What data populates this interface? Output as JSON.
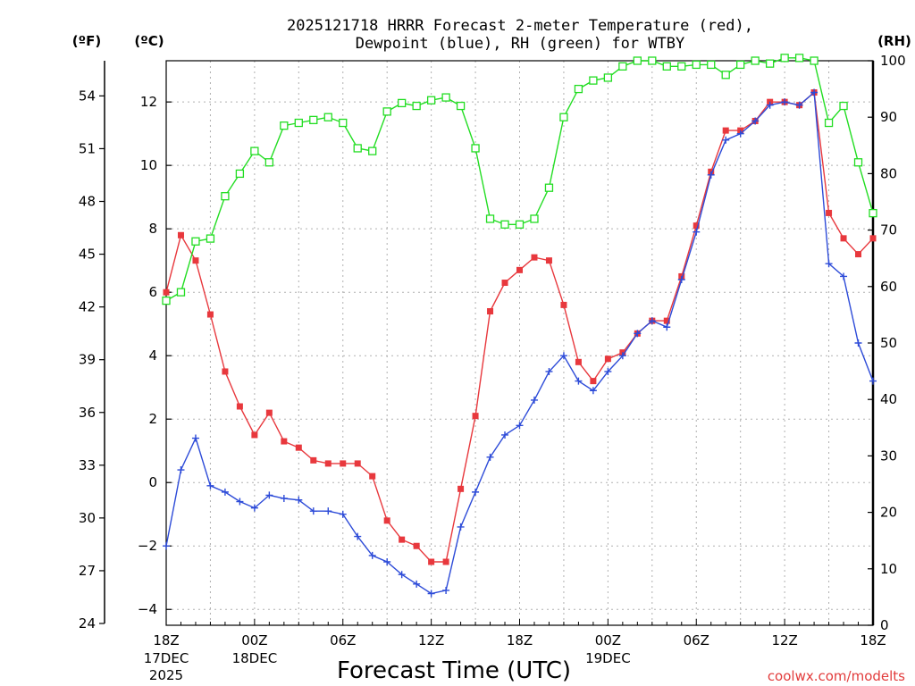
{
  "chart_data": {
    "type": "line",
    "title_line1": "2025121718 HRRR Forecast 2-meter Temperature (red),",
    "title_line2": "Dewpoint (blue), RH (green) for WTBY",
    "xlabel": "Forecast Time (UTC)",
    "credit": "coolwx.com/modelts",
    "unit_f": "(ºF)",
    "unit_c": "(ºC)",
    "unit_rh": "(RH)",
    "x_range": [
      0,
      48
    ],
    "c_range": [
      -4.5,
      13.3
    ],
    "rh_range": [
      0,
      100
    ],
    "f_range": [
      24,
      56
    ],
    "x_ticks": [
      {
        "x": 0,
        "label": "18Z",
        "sub1": "17DEC",
        "sub2": "2025"
      },
      {
        "x": 6,
        "label": "00Z",
        "sub1": "18DEC",
        "sub2": ""
      },
      {
        "x": 12,
        "label": "06Z",
        "sub1": "",
        "sub2": ""
      },
      {
        "x": 18,
        "label": "12Z",
        "sub1": "",
        "sub2": ""
      },
      {
        "x": 24,
        "label": "18Z",
        "sub1": "",
        "sub2": ""
      },
      {
        "x": 30,
        "label": "00Z",
        "sub1": "19DEC",
        "sub2": ""
      },
      {
        "x": 36,
        "label": "06Z",
        "sub1": "",
        "sub2": ""
      },
      {
        "x": 42,
        "label": "12Z",
        "sub1": "",
        "sub2": ""
      },
      {
        "x": 48,
        "label": "18Z",
        "sub1": "",
        "sub2": ""
      }
    ],
    "c_ticks": [
      -4,
      -2,
      0,
      2,
      4,
      6,
      8,
      10,
      12
    ],
    "f_ticks": [
      24,
      27,
      30,
      33,
      36,
      39,
      42,
      45,
      48,
      51,
      54
    ],
    "rh_ticks": [
      0,
      10,
      20,
      30,
      40,
      50,
      60,
      70,
      80,
      90,
      100
    ],
    "series": [
      {
        "name": "Temperature",
        "axis": "c",
        "color": "#e8383d",
        "marker": "filled-square",
        "values": [
          6.0,
          7.8,
          7.0,
          5.3,
          3.5,
          2.4,
          1.5,
          2.2,
          1.3,
          1.1,
          0.7,
          0.6,
          0.6,
          0.6,
          0.2,
          -1.2,
          -1.8,
          -2.0,
          -2.5,
          -2.5,
          -0.2,
          2.1,
          5.4,
          6.3,
          6.7,
          7.1,
          7.0,
          5.6,
          3.8,
          3.2,
          3.9,
          4.1,
          4.7,
          5.1,
          5.1,
          6.5,
          8.1,
          9.8,
          11.1,
          11.1,
          11.4,
          12.0,
          12.0,
          11.9,
          12.3,
          8.5,
          7.7,
          7.2,
          7.7
        ]
      },
      {
        "name": "Dewpoint",
        "axis": "c",
        "color": "#2d4bd8",
        "marker": "plus",
        "values": [
          -2.0,
          0.4,
          1.4,
          -0.1,
          -0.3,
          -0.6,
          -0.8,
          -0.4,
          -0.5,
          -0.55,
          -0.9,
          -0.9,
          -1.0,
          -1.7,
          -2.3,
          -2.5,
          -2.9,
          -3.2,
          -3.5,
          -3.4,
          -1.4,
          -0.3,
          0.8,
          1.5,
          1.8,
          2.6,
          3.5,
          4.0,
          3.2,
          2.9,
          3.5,
          4.0,
          4.7,
          5.1,
          4.9,
          6.4,
          7.9,
          9.7,
          10.8,
          11.0,
          11.4,
          11.9,
          12.0,
          11.9,
          12.3,
          6.9,
          6.5,
          4.4,
          3.2
        ]
      },
      {
        "name": "RH",
        "axis": "rh",
        "color": "#22dd22",
        "marker": "open-square",
        "values": [
          57.5,
          59,
          68,
          68.5,
          76,
          80,
          84,
          82,
          88.5,
          89,
          89.5,
          90,
          89,
          84.5,
          84,
          91,
          92.5,
          92,
          93,
          93.5,
          92,
          84.5,
          72,
          71,
          71,
          72,
          77.5,
          90,
          95,
          96.5,
          97,
          99,
          100,
          100,
          99,
          99,
          99.3,
          99.3,
          97.5,
          99.3,
          100,
          99.5,
          100.5,
          100.5,
          100,
          89,
          92,
          82,
          73
        ]
      }
    ]
  }
}
